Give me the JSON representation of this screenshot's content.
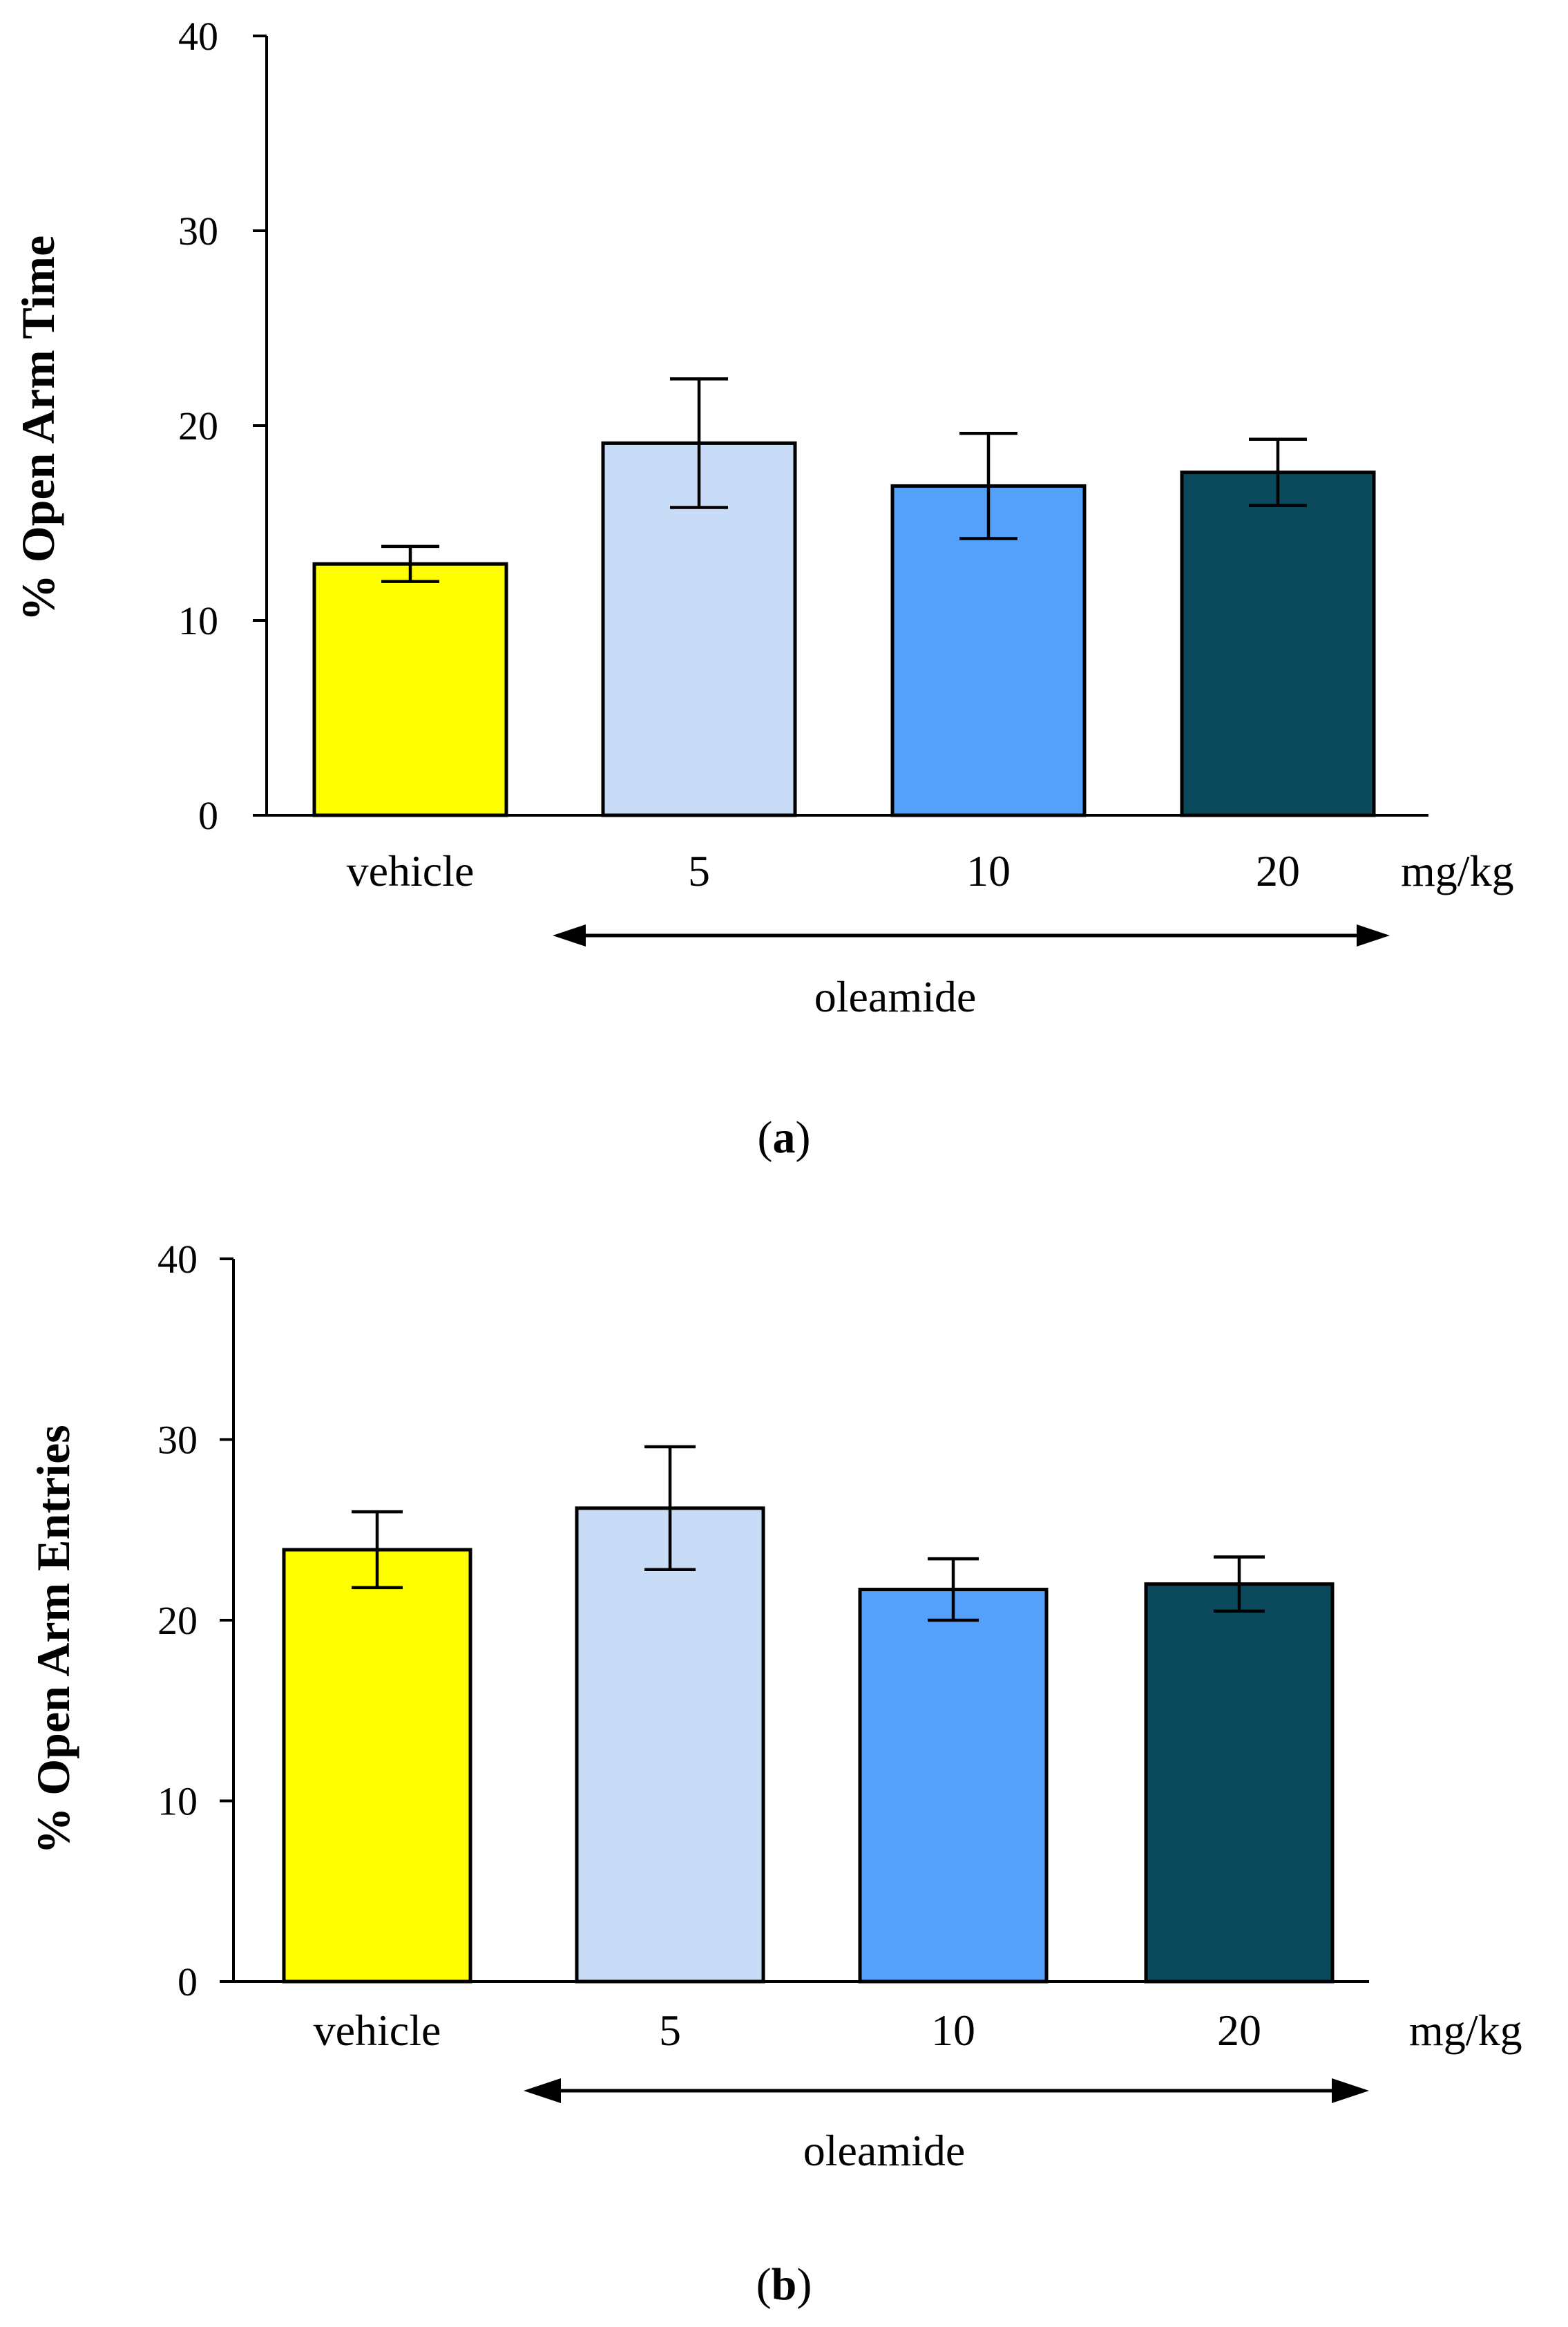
{
  "chart_data": [
    {
      "id": "a",
      "type": "bar",
      "panel_letter": "a",
      "categories": [
        "vehicle",
        "5",
        "10",
        "20"
      ],
      "values": [
        12.9,
        19.1,
        16.9,
        17.6
      ],
      "errors": [
        0.9,
        3.3,
        2.7,
        1.7
      ],
      "bar_colors": [
        "#FFFF00",
        "#C9DCF7",
        "#55A0FA",
        "#0A4A5C"
      ],
      "ylabel": "%  Open  Arm Time",
      "ylim": [
        0,
        40
      ],
      "yticks": [
        0,
        10,
        20,
        30,
        40
      ],
      "unit_label": "mg/kg",
      "group_label": "oleamide",
      "grid": false
    },
    {
      "id": "b",
      "type": "bar",
      "panel_letter": "b",
      "categories": [
        "vehicle",
        "5",
        "10",
        "20"
      ],
      "values": [
        23.9,
        26.2,
        21.7,
        22.0
      ],
      "errors": [
        2.1,
        3.4,
        1.7,
        1.5
      ],
      "bar_colors": [
        "#FFFF00",
        "#C9DCF7",
        "#55A0FA",
        "#0A4A5C"
      ],
      "ylabel": "%  Open Arm Entries",
      "ylim": [
        0,
        40
      ],
      "yticks": [
        0,
        10,
        20,
        30,
        40
      ],
      "unit_label": "mg/kg",
      "group_label": "oleamide",
      "grid": false
    }
  ]
}
